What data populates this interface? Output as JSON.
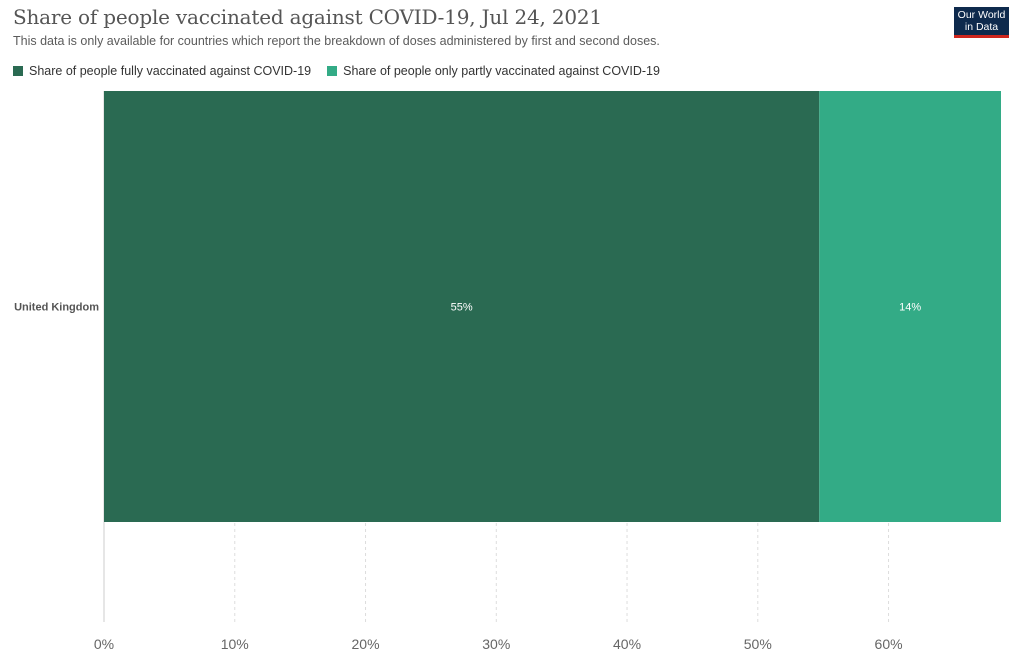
{
  "header": {
    "title": "Share of people vaccinated against COVID-19, Jul 24, 2021",
    "subtitle": "This data is only available for countries which report the breakdown of doses administered by first and second doses."
  },
  "logo": {
    "line1": "Our World",
    "line2": "in Data"
  },
  "legend": {
    "items": [
      {
        "label": "Share of people fully vaccinated against COVID-19",
        "color": "#2a6a52"
      },
      {
        "label": "Share of people only partly vaccinated against COVID-19",
        "color": "#33ab86"
      }
    ]
  },
  "colors": {
    "fully": "#2a6a52",
    "partly": "#33ab86",
    "grid": "#dddddd",
    "axis_text": "#666666"
  },
  "chart_data": {
    "type": "bar",
    "orientation": "horizontal",
    "stacked": true,
    "title": "Share of people vaccinated against COVID-19, Jul 24, 2021",
    "categories": [
      "United Kingdom"
    ],
    "series": [
      {
        "name": "Share of people fully vaccinated against COVID-19",
        "values": [
          54.7
        ],
        "label": "55%"
      },
      {
        "name": "Share of people only partly vaccinated against COVID-19",
        "values": [
          13.9
        ],
        "label": "14%"
      }
    ],
    "xlim": [
      0,
      68.6
    ],
    "xticks": [
      0,
      10,
      20,
      30,
      40,
      50,
      60
    ],
    "xtick_labels": [
      "0%",
      "10%",
      "20%",
      "30%",
      "40%",
      "50%",
      "60%"
    ],
    "grid": true,
    "legend_position": "top-left"
  }
}
